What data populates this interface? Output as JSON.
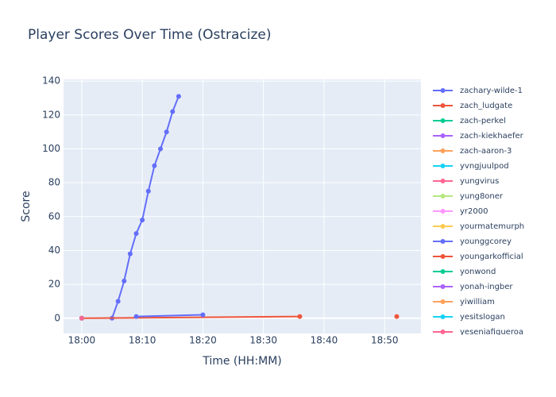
{
  "chart_data": {
    "type": "line",
    "title": "Player Scores Over Time (Ostracize)",
    "x_label": "Time (HH:MM)",
    "y_label": "Score",
    "xlim": [
      "17:57",
      "18:56"
    ],
    "xticks": [
      "18:00",
      "18:10",
      "18:20",
      "18:30",
      "18:40",
      "18:50"
    ],
    "ylim": [
      -9,
      141
    ],
    "yticks": [
      0,
      20,
      40,
      60,
      80,
      100,
      120,
      140
    ],
    "grid": true,
    "series": [
      {
        "name": "zachary-wilde-1",
        "color": "#636efa",
        "x": [
          "18:05",
          "18:06",
          "18:07",
          "18:08",
          "18:09",
          "18:10",
          "18:11",
          "18:12",
          "18:13",
          "18:14",
          "18:15",
          "18:16"
        ],
        "values": [
          0,
          10,
          22,
          38,
          50,
          58,
          75,
          90,
          100,
          110,
          122,
          131
        ]
      },
      {
        "name": "zach_ludgate",
        "color": "#EF553B",
        "x": [
          "18:00",
          "18:36"
        ],
        "values": [
          0,
          1
        ]
      },
      {
        "name": "zach-perkel",
        "color": "#00cc96",
        "x": [
          "18:00"
        ],
        "values": [
          0
        ]
      },
      {
        "name": "zach-kiekhaefer",
        "color": "#ab63fa",
        "x": [
          "18:00"
        ],
        "values": [
          0
        ]
      },
      {
        "name": "zach-aaron-3",
        "color": "#FFA15A",
        "x": [
          "18:00"
        ],
        "values": [
          0
        ]
      },
      {
        "name": "yvngjuulpod",
        "color": "#19d3f3",
        "x": [
          "18:00"
        ],
        "values": [
          0
        ]
      },
      {
        "name": "yungvirus",
        "color": "#FF6692",
        "x": [
          "18:00"
        ],
        "values": [
          0
        ]
      },
      {
        "name": "yung8oner",
        "color": "#B6E880",
        "x": [
          "18:00"
        ],
        "values": [
          0
        ]
      },
      {
        "name": "yr2000",
        "color": "#FF97FF",
        "x": [
          "18:00"
        ],
        "values": [
          0
        ]
      },
      {
        "name": "yourmatemurph",
        "color": "#FECB52",
        "x": [
          "18:00"
        ],
        "values": [
          0
        ]
      },
      {
        "name": "younggcorey",
        "color": "#636efa",
        "x": [
          "18:09",
          "18:20"
        ],
        "values": [
          1,
          2
        ]
      },
      {
        "name": "youngarkofficial",
        "color": "#EF553B",
        "x": [
          "18:52"
        ],
        "values": [
          1
        ]
      },
      {
        "name": "yonwond",
        "color": "#00cc96",
        "x": [
          "18:00"
        ],
        "values": [
          0
        ]
      },
      {
        "name": "yonah-ingber",
        "color": "#ab63fa",
        "x": [
          "18:00"
        ],
        "values": [
          0
        ]
      },
      {
        "name": "yiwilliam",
        "color": "#FFA15A",
        "x": [
          "18:00"
        ],
        "values": [
          0
        ]
      },
      {
        "name": "yesitslogan",
        "color": "#19d3f3",
        "x": [
          "18:00"
        ],
        "values": [
          0
        ]
      },
      {
        "name": "yeseniafigueroa",
        "color": "#FF6692",
        "x": [
          "18:00"
        ],
        "values": [
          0
        ]
      }
    ]
  }
}
